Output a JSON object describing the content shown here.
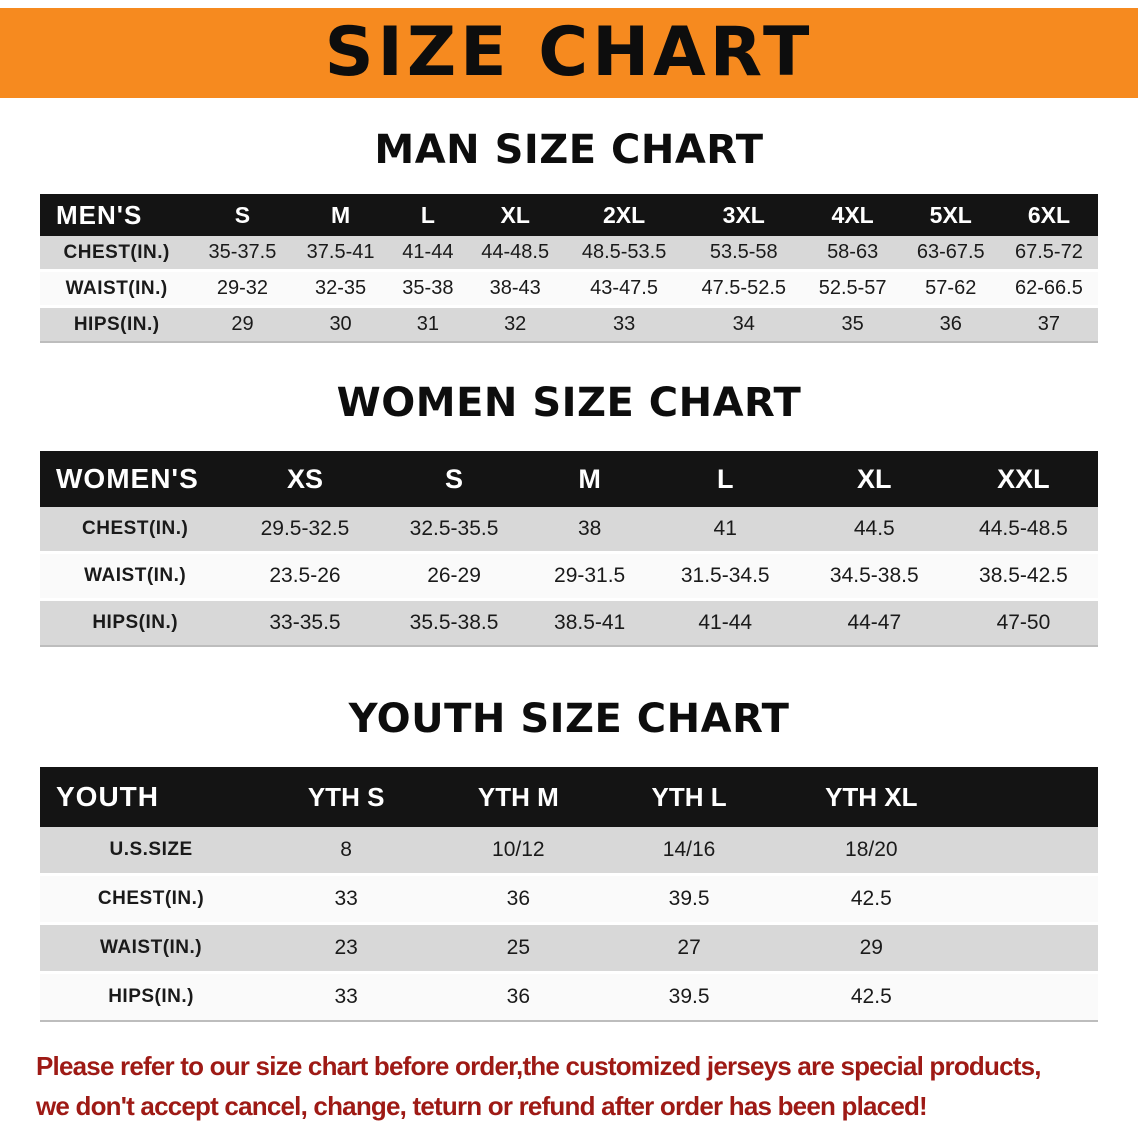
{
  "banner": {
    "title": "SIZE CHART"
  },
  "chart_data": [
    {
      "type": "table",
      "title": "MAN SIZE CHART",
      "columns": [
        "MEN'S",
        "S",
        "M",
        "L",
        "XL",
        "2XL",
        "3XL",
        "4XL",
        "5XL",
        "6XL"
      ],
      "rows": [
        [
          "CHEST(IN.)",
          "35-37.5",
          "37.5-41",
          "41-44",
          "44-48.5",
          "48.5-53.5",
          "53.5-58",
          "58-63",
          "63-67.5",
          "67.5-72"
        ],
        [
          "WAIST(IN.)",
          "29-32",
          "32-35",
          "35-38",
          "38-43",
          "43-47.5",
          "47.5-52.5",
          "52.5-57",
          "57-62",
          "62-66.5"
        ],
        [
          "HIPS(IN.)",
          "29",
          "30",
          "31",
          "32",
          "33",
          "34",
          "35",
          "36",
          "37"
        ]
      ]
    },
    {
      "type": "table",
      "title": "WOMEN SIZE CHART",
      "columns": [
        "WOMEN'S",
        "XS",
        "S",
        "M",
        "L",
        "XL",
        "XXL"
      ],
      "rows": [
        [
          "CHEST(IN.)",
          "29.5-32.5",
          "32.5-35.5",
          "38",
          "41",
          "44.5",
          "44.5-48.5"
        ],
        [
          "WAIST(IN.)",
          "23.5-26",
          "26-29",
          "29-31.5",
          "31.5-34.5",
          "34.5-38.5",
          "38.5-42.5"
        ],
        [
          "HIPS(IN.)",
          "33-35.5",
          "35.5-38.5",
          "38.5-41",
          "41-44",
          "44-47",
          "47-50"
        ]
      ]
    },
    {
      "type": "table",
      "title": "YOUTH SIZE CHART",
      "trailing_spacer": true,
      "columns": [
        "YOUTH",
        "YTH S",
        "YTH M",
        "YTH L",
        "YTH XL"
      ],
      "rows": [
        [
          "U.S.SIZE",
          "8",
          "10/12",
          "14/16",
          "18/20"
        ],
        [
          "CHEST(IN.)",
          "33",
          "36",
          "39.5",
          "42.5"
        ],
        [
          "WAIST(IN.)",
          "23",
          "25",
          "27",
          "29"
        ],
        [
          "HIPS(IN.)",
          "33",
          "36",
          "39.5",
          "42.5"
        ]
      ]
    }
  ],
  "footer_note": {
    "line1": "Please refer to our size chart before order,the customized jerseys are special products,",
    "line2": "we don't accept cancel, change, teturn or refund after order has been placed!"
  },
  "colors": {
    "banner_bg": "#F68A1F",
    "table_header_bg": "#141414",
    "row_alt_bg": "#D8D8D8",
    "note_red": "#9E1A15"
  }
}
